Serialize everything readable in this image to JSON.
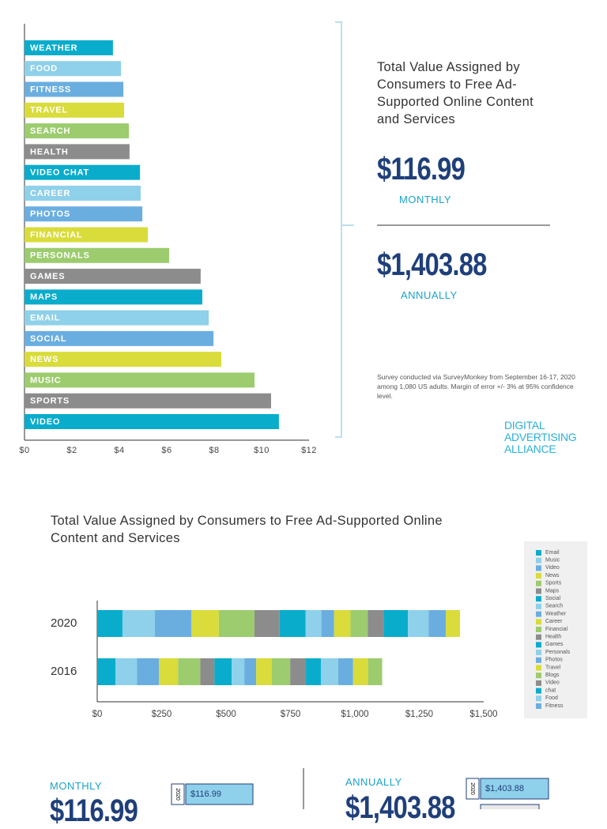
{
  "chart_data": [
    {
      "type": "bar",
      "orientation": "horizontal",
      "categories": [
        "WEATHER",
        "FOOD",
        "FITNESS",
        "TRAVEL",
        "SEARCH",
        "HEALTH",
        "VIDEO CHAT",
        "CAREER",
        "PHOTOS",
        "FINANCIAL",
        "PERSONALS",
        "GAMES",
        "MAPS",
        "EMAIL",
        "SOCIAL",
        "NEWS",
        "MUSIC",
        "SPORTS",
        "VIDEO"
      ],
      "values": [
        3.73,
        4.07,
        4.17,
        4.2,
        4.4,
        4.43,
        4.87,
        4.9,
        4.97,
        5.2,
        6.1,
        7.43,
        7.5,
        7.77,
        7.97,
        8.3,
        9.7,
        10.4,
        10.73
      ],
      "colors": [
        "#0aaccc",
        "#8fd0ea",
        "#6aaee0",
        "#d9dc3a",
        "#9ccc6e",
        "#8c8c8c"
      ],
      "xlim": [
        0,
        12
      ],
      "xticks": [
        {
          "value": 0,
          "label": "$0"
        },
        {
          "value": 2,
          "label": "$2"
        },
        {
          "value": 4,
          "label": "$4"
        },
        {
          "value": 6,
          "label": "$6"
        },
        {
          "value": 8,
          "label": "$8"
        },
        {
          "value": 10,
          "label": "$10"
        },
        {
          "value": 12,
          "label": "$12"
        }
      ]
    },
    {
      "type": "stacked_bar",
      "orientation": "horizontal",
      "title": "Total Value Assigned by Consumers to Free Ad-Supported Online Content and Services",
      "categories": [
        "2020",
        "2016"
      ],
      "series": [
        {
          "name": "Email",
          "color": "#0aaccc",
          "values": [
            98,
            71
          ]
        },
        {
          "name": "Music",
          "color": "#8fd0ea",
          "values": [
            126,
            83
          ]
        },
        {
          "name": "Video",
          "color": "#6aaee0",
          "values": [
            141,
            86
          ]
        },
        {
          "name": "News",
          "color": "#d9dc3a",
          "values": [
            107,
            74
          ]
        },
        {
          "name": "Sports",
          "color": "#9ccc6e",
          "values": [
            138,
            86
          ]
        },
        {
          "name": "Maps",
          "color": "#8c8c8c",
          "values": [
            98,
            55
          ]
        },
        {
          "name": "Social",
          "color": "#0aaccc",
          "values": [
            101,
            67
          ]
        },
        {
          "name": "Search",
          "color": "#8fd0ea",
          "values": [
            61,
            49
          ]
        },
        {
          "name": "Weather",
          "color": "#6aaee0",
          "values": [
            49,
            46
          ]
        },
        {
          "name": "Career",
          "color": "#d9dc3a",
          "values": [
            64,
            61
          ]
        },
        {
          "name": "Financial",
          "color": "#9ccc6e",
          "values": [
            67,
            71
          ]
        },
        {
          "name": "Health",
          "color": "#8c8c8c",
          "values": [
            61,
            61
          ]
        },
        {
          "name": "Games",
          "color": "#0aaccc",
          "values": [
            95,
            58
          ]
        },
        {
          "name": "Personals",
          "color": "#8fd0ea",
          "values": [
            80,
            67
          ]
        },
        {
          "name": "Photos",
          "color": "#6aaee0",
          "values": [
            67,
            58
          ]
        },
        {
          "name": "Travel",
          "color": "#d9dc3a",
          "values": [
            55,
            58
          ]
        },
        {
          "name": "Blogs",
          "color": "#9ccc6e",
          "values": [
            null,
            55
          ]
        },
        {
          "name": "Video",
          "color": "#8c8c8c",
          "values": [
            null,
            null
          ]
        },
        {
          "name": "chat",
          "color": "#0aaccc",
          "values": [
            null,
            null
          ]
        },
        {
          "name": "Food",
          "color": "#8fd0ea",
          "values": [
            null,
            null
          ]
        },
        {
          "name": "Fitness",
          "color": "#6aaee0",
          "values": [
            null,
            null
          ]
        }
      ],
      "xlim": [
        0,
        1500
      ],
      "xticks": [
        {
          "value": 0,
          "label": "$0"
        },
        {
          "value": 250,
          "label": "$250"
        },
        {
          "value": 500,
          "label": "$500"
        },
        {
          "value": 750,
          "label": "$750"
        },
        {
          "value": 1000,
          "label": "$1,000"
        },
        {
          "value": 1250,
          "label": "$1,250"
        },
        {
          "value": 1500,
          "label": "$1,500"
        }
      ]
    }
  ],
  "summary": {
    "title": "Total Value Assigned by Consumers to Free Ad-Supported Online Content and Services",
    "monthly_value": "$116.99",
    "monthly_label": "MONTHLY",
    "annual_value": "$1,403.88",
    "annual_label": "ANNUALLY",
    "note": "Survey conducted via SurveyMonkey from September 16-17, 2020 among 1,080 US adults. Margin of error +/- 3% at 95% confidence level.",
    "logo": "DIGITAL ADVERTISING ALLIANCE"
  },
  "bottom": {
    "monthly": {
      "label": "MONTHLY",
      "value": "$116.99",
      "year": "2020",
      "box": "$116.99"
    },
    "annually": {
      "label": "ANNUALLY",
      "value": "$1,403.88",
      "year": "2020",
      "box": "$1,403.88"
    }
  }
}
